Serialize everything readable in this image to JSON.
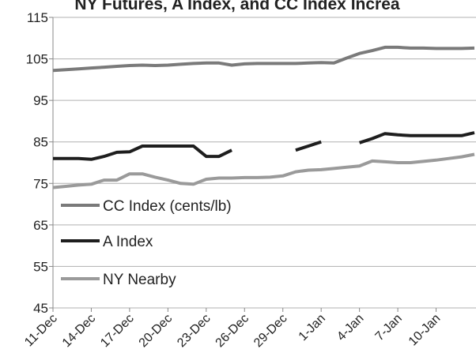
{
  "chart_data": {
    "type": "line",
    "title": "NY Futures, A Index, and CC Index Increa",
    "categories": [
      "11-Dec",
      null,
      null,
      "14-Dec",
      null,
      null,
      "17-Dec",
      null,
      null,
      "20-Dec",
      null,
      null,
      "23-Dec",
      null,
      null,
      "26-Dec",
      null,
      null,
      "29-Dec",
      null,
      null,
      "1-Jan",
      null,
      null,
      "4-Jan",
      null,
      null,
      "7-Jan",
      null,
      null,
      "10-Jan",
      null,
      null,
      null
    ],
    "series": [
      {
        "name": "CC Index (cents/lb)",
        "color": "#7a7a7a",
        "values": [
          102.2,
          102.4,
          102.6,
          102.8,
          103,
          103.2,
          103.4,
          103.5,
          103.4,
          103.5,
          103.7,
          103.9,
          104,
          104,
          103.5,
          103.8,
          103.9,
          103.9,
          103.9,
          103.9,
          104,
          104.1,
          104,
          105.2,
          106.3,
          107,
          107.8,
          107.8,
          107.6,
          107.6,
          107.5,
          107.5,
          107.5,
          107.6
        ]
      },
      {
        "name": "A Index",
        "color": "#1e1e1e",
        "values": [
          81,
          81,
          81,
          80.8,
          81.5,
          82.5,
          82.6,
          84,
          84,
          84,
          84,
          84,
          81.5,
          81.5,
          83,
          null,
          null,
          null,
          null,
          83,
          84,
          85,
          null,
          null,
          84.8,
          85.8,
          87,
          86.7,
          86.5,
          86.5,
          86.5,
          86.5,
          86.5,
          87.2
        ]
      },
      {
        "name": "NY Nearby",
        "color": "#9a9a9a",
        "values": [
          74,
          74.3,
          74.6,
          74.8,
          75.8,
          75.8,
          77.3,
          77.3,
          76.5,
          75.8,
          75,
          74.8,
          76,
          76.3,
          76.3,
          76.4,
          76.4,
          76.5,
          76.8,
          77.8,
          78.2,
          78.3,
          78.6,
          78.9,
          79.2,
          80.4,
          80.2,
          80,
          80,
          80.3,
          80.6,
          81,
          81.4,
          82
        ]
      }
    ],
    "ylim": [
      45,
      115
    ],
    "yticks": [
      45,
      55,
      65,
      75,
      85,
      95,
      105,
      115
    ],
    "grid": true,
    "legend": "lower-left"
  }
}
